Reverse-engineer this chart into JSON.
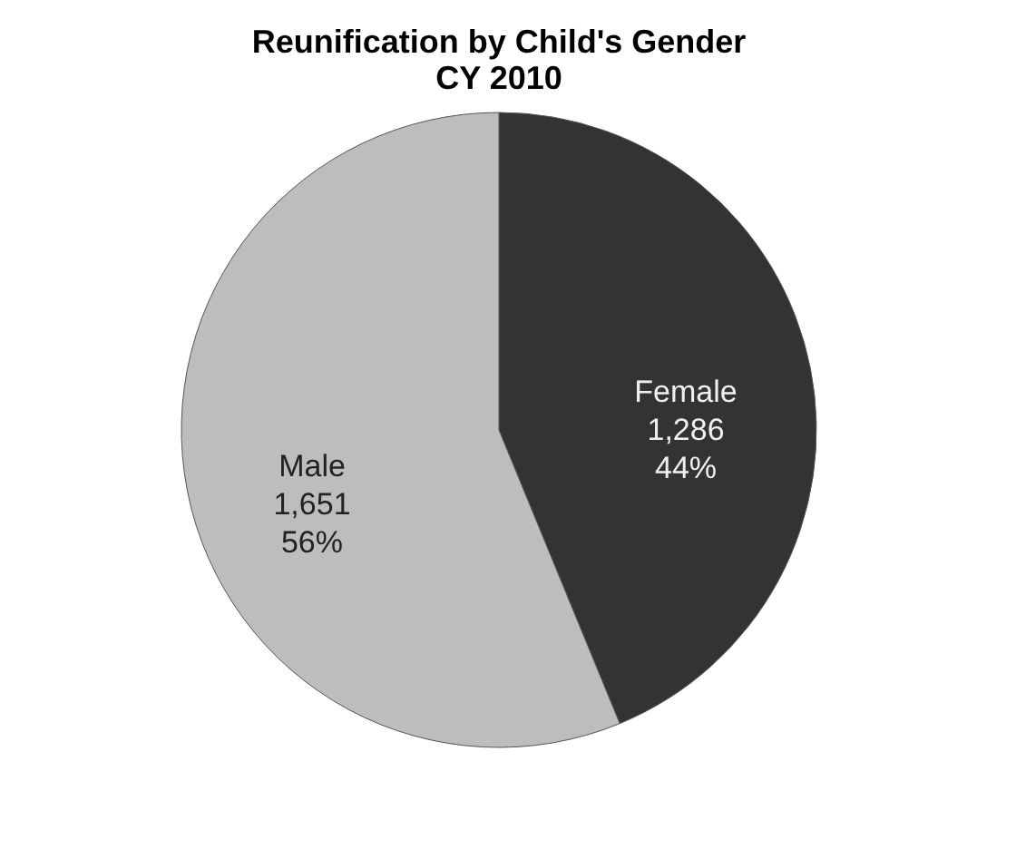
{
  "chart_data": {
    "type": "pie",
    "title": "Reunification by Child's Gender\nCY 2010",
    "categories": [
      "Female",
      "Male"
    ],
    "values": [
      1286,
      1651
    ],
    "colors": [
      "#333333",
      "#bdbdbd"
    ],
    "value_labels": [
      "1,286\n44%",
      "1,651\n56%"
    ],
    "legend": false
  }
}
